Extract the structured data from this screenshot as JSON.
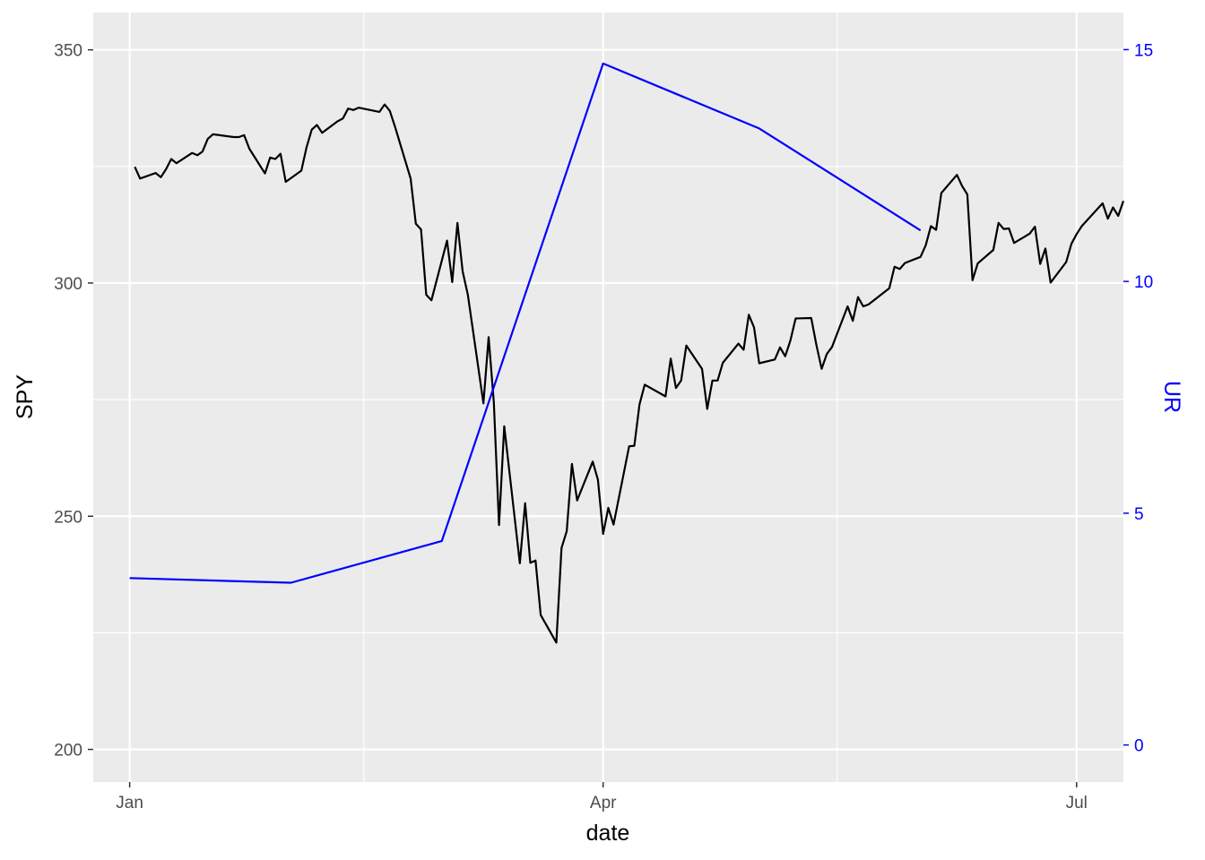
{
  "chart_data": {
    "type": "line",
    "title": "",
    "xlabel": "date",
    "ylabel_left": "SPY",
    "ylabel_right": "UR",
    "x_ticks": [
      {
        "label": "Jan",
        "date": "2020-01-01"
      },
      {
        "label": "Apr",
        "date": "2020-04-01"
      },
      {
        "label": "Jul",
        "date": "2020-07-01"
      }
    ],
    "x_minor_dates": [
      "2020-02-15",
      "2020-05-16"
    ],
    "xlim": [
      "2019-12-25",
      "2020-07-10"
    ],
    "ylim_left": [
      193,
      358
    ],
    "y_ticks_left": [
      200,
      250,
      300,
      350
    ],
    "y_minor_left": [
      225,
      275,
      325
    ],
    "ylim_right": [
      -0.8,
      15.8
    ],
    "y_ticks_right": [
      0,
      5,
      10,
      15
    ],
    "grid": true,
    "colors": {
      "spy": "#000000",
      "ur": "#0000ff",
      "panel": "#ebebeb",
      "grid": "#ffffff"
    },
    "series": [
      {
        "name": "SPY",
        "axis": "left",
        "color": "#000000",
        "points": [
          [
            "2020-01-02",
            324.9
          ],
          [
            "2020-01-03",
            322.4
          ],
          [
            "2020-01-06",
            323.6
          ],
          [
            "2020-01-07",
            322.7
          ],
          [
            "2020-01-08",
            324.4
          ],
          [
            "2020-01-09",
            326.6
          ],
          [
            "2020-01-10",
            325.7
          ],
          [
            "2020-01-13",
            327.9
          ],
          [
            "2020-01-14",
            327.4
          ],
          [
            "2020-01-15",
            328.2
          ],
          [
            "2020-01-16",
            330.9
          ],
          [
            "2020-01-17",
            331.9
          ],
          [
            "2020-01-21",
            331.3
          ],
          [
            "2020-01-22",
            331.3
          ],
          [
            "2020-01-23",
            331.7
          ],
          [
            "2020-01-24",
            328.8
          ],
          [
            "2020-01-27",
            323.5
          ],
          [
            "2020-01-28",
            326.9
          ],
          [
            "2020-01-29",
            326.6
          ],
          [
            "2020-01-30",
            327.7
          ],
          [
            "2020-01-31",
            321.7
          ],
          [
            "2020-02-03",
            324.1
          ],
          [
            "2020-02-04",
            329.1
          ],
          [
            "2020-02-05",
            332.9
          ],
          [
            "2020-02-06",
            333.9
          ],
          [
            "2020-02-07",
            332.2
          ],
          [
            "2020-02-10",
            334.7
          ],
          [
            "2020-02-11",
            335.3
          ],
          [
            "2020-02-12",
            337.4
          ],
          [
            "2020-02-13",
            337.1
          ],
          [
            "2020-02-14",
            337.6
          ],
          [
            "2020-02-18",
            336.7
          ],
          [
            "2020-02-19",
            338.3
          ],
          [
            "2020-02-20",
            336.9
          ],
          [
            "2020-02-21",
            333.5
          ],
          [
            "2020-02-24",
            322.4
          ],
          [
            "2020-02-25",
            312.7
          ],
          [
            "2020-02-26",
            311.5
          ],
          [
            "2020-02-27",
            297.5
          ],
          [
            "2020-02-28",
            296.3
          ],
          [
            "2020-03-02",
            309.1
          ],
          [
            "2020-03-03",
            300.2
          ],
          [
            "2020-03-04",
            312.9
          ],
          [
            "2020-03-05",
            302.5
          ],
          [
            "2020-03-06",
            297.5
          ],
          [
            "2020-03-09",
            274.2
          ],
          [
            "2020-03-10",
            288.4
          ],
          [
            "2020-03-11",
            274.4
          ],
          [
            "2020-03-12",
            248.1
          ],
          [
            "2020-03-13",
            269.3
          ],
          [
            "2020-03-16",
            239.9
          ],
          [
            "2020-03-17",
            252.8
          ],
          [
            "2020-03-18",
            240.0
          ],
          [
            "2020-03-19",
            240.5
          ],
          [
            "2020-03-20",
            228.8
          ],
          [
            "2020-03-23",
            222.9
          ],
          [
            "2020-03-24",
            243.2
          ],
          [
            "2020-03-25",
            246.8
          ],
          [
            "2020-03-26",
            261.2
          ],
          [
            "2020-03-27",
            253.4
          ],
          [
            "2020-03-30",
            261.7
          ],
          [
            "2020-03-31",
            257.8
          ],
          [
            "2020-04-01",
            246.2
          ],
          [
            "2020-04-02",
            251.8
          ],
          [
            "2020-04-03",
            248.2
          ],
          [
            "2020-04-06",
            265.0
          ],
          [
            "2020-04-07",
            265.1
          ],
          [
            "2020-04-08",
            274.0
          ],
          [
            "2020-04-09",
            278.2
          ],
          [
            "2020-04-13",
            275.7
          ],
          [
            "2020-04-14",
            283.8
          ],
          [
            "2020-04-15",
            277.5
          ],
          [
            "2020-04-16",
            279.1
          ],
          [
            "2020-04-17",
            286.6
          ],
          [
            "2020-04-20",
            281.6
          ],
          [
            "2020-04-21",
            273.0
          ],
          [
            "2020-04-22",
            279.1
          ],
          [
            "2020-04-23",
            279.1
          ],
          [
            "2020-04-24",
            282.9
          ],
          [
            "2020-04-27",
            287.0
          ],
          [
            "2020-04-28",
            285.7
          ],
          [
            "2020-04-29",
            293.2
          ],
          [
            "2020-04-30",
            290.5
          ],
          [
            "2020-05-01",
            282.8
          ],
          [
            "2020-05-04",
            283.6
          ],
          [
            "2020-05-05",
            286.2
          ],
          [
            "2020-05-06",
            284.3
          ],
          [
            "2020-05-07",
            287.7
          ],
          [
            "2020-05-08",
            292.4
          ],
          [
            "2020-05-11",
            292.5
          ],
          [
            "2020-05-12",
            286.7
          ],
          [
            "2020-05-13",
            281.6
          ],
          [
            "2020-05-14",
            284.8
          ],
          [
            "2020-05-15",
            286.3
          ],
          [
            "2020-05-18",
            295.0
          ],
          [
            "2020-05-19",
            291.9
          ],
          [
            "2020-05-20",
            297.0
          ],
          [
            "2020-05-21",
            295.0
          ],
          [
            "2020-05-22",
            295.4
          ],
          [
            "2020-05-26",
            298.9
          ],
          [
            "2020-05-27",
            303.5
          ],
          [
            "2020-05-28",
            303.0
          ],
          [
            "2020-05-29",
            304.3
          ],
          [
            "2020-06-01",
            305.6
          ],
          [
            "2020-06-02",
            308.1
          ],
          [
            "2020-06-03",
            312.2
          ],
          [
            "2020-06-04",
            311.4
          ],
          [
            "2020-06-05",
            319.3
          ],
          [
            "2020-06-08",
            323.2
          ],
          [
            "2020-06-09",
            320.8
          ],
          [
            "2020-06-10",
            319.0
          ],
          [
            "2020-06-11",
            300.6
          ],
          [
            "2020-06-12",
            304.2
          ],
          [
            "2020-06-15",
            307.1
          ],
          [
            "2020-06-16",
            312.9
          ],
          [
            "2020-06-17",
            311.6
          ],
          [
            "2020-06-18",
            311.7
          ],
          [
            "2020-06-19",
            308.6
          ],
          [
            "2020-06-22",
            310.6
          ],
          [
            "2020-06-23",
            312.1
          ],
          [
            "2020-06-24",
            304.1
          ],
          [
            "2020-06-25",
            307.4
          ],
          [
            "2020-06-26",
            300.1
          ],
          [
            "2020-06-29",
            304.5
          ],
          [
            "2020-06-30",
            308.4
          ],
          [
            "2020-07-01",
            310.5
          ],
          [
            "2020-07-02",
            312.2
          ],
          [
            "2020-07-06",
            317.1
          ],
          [
            "2020-07-07",
            313.8
          ],
          [
            "2020-07-08",
            316.2
          ],
          [
            "2020-07-09",
            314.4
          ],
          [
            "2020-07-10",
            317.6
          ]
        ]
      },
      {
        "name": "UR",
        "axis": "right",
        "color": "#0000ff",
        "points": [
          [
            "2020-01-01",
            3.6
          ],
          [
            "2020-02-01",
            3.5
          ],
          [
            "2020-03-01",
            4.4
          ],
          [
            "2020-04-01",
            14.7
          ],
          [
            "2020-05-01",
            13.3
          ],
          [
            "2020-06-01",
            11.1
          ]
        ]
      }
    ]
  }
}
